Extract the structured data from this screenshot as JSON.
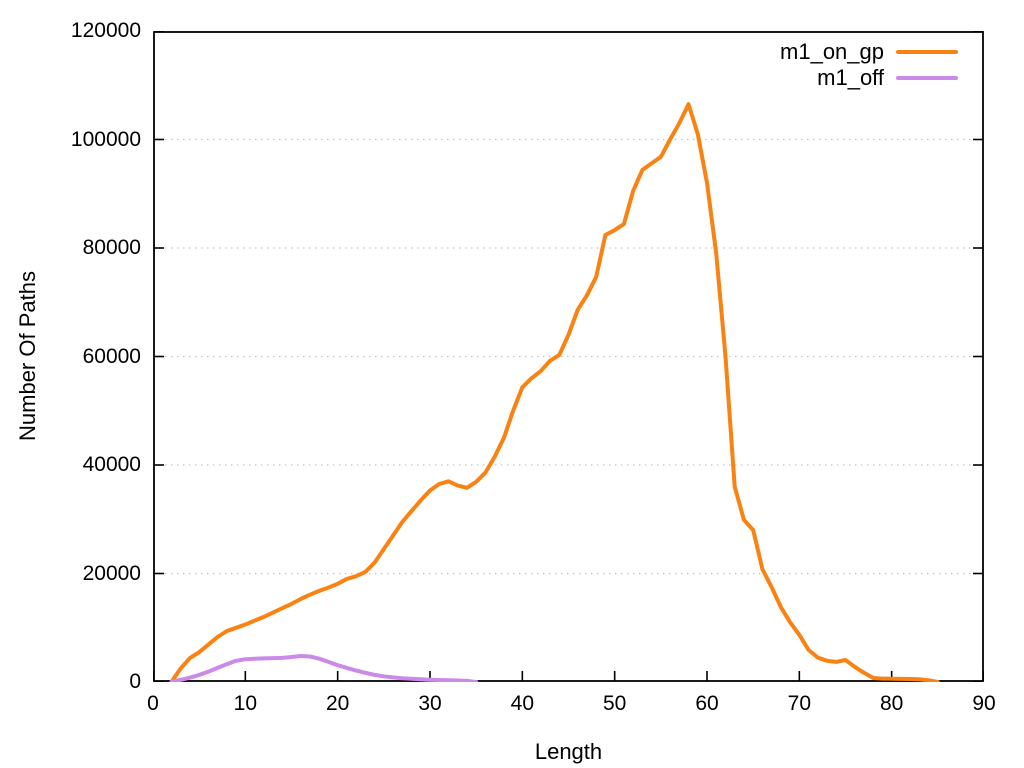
{
  "chart_data": {
    "type": "line",
    "title": "",
    "xlabel": "Length",
    "ylabel": "Number Of Paths",
    "xlim": [
      0,
      90
    ],
    "ylim": [
      0,
      120000
    ],
    "xticks": [
      0,
      10,
      20,
      30,
      40,
      50,
      60,
      70,
      80,
      90
    ],
    "yticks": [
      0,
      20000,
      40000,
      60000,
      80000,
      100000,
      120000
    ],
    "xtick_labels": [
      "0",
      "10",
      "20",
      "30",
      "40",
      "50",
      "60",
      "70",
      "80",
      "90"
    ],
    "ytick_labels": [
      "0",
      "20000",
      "40000",
      "60000",
      "80000",
      "100000",
      "120000"
    ],
    "grid": "horizontal-dotted",
    "grid_color": "#c4c4c4",
    "border_color": "#000000",
    "legend_position": "top-right-inside",
    "series": [
      {
        "name": "m1_on_gp",
        "color": "#f98212",
        "x": [
          2,
          3,
          4,
          5,
          6,
          7,
          8,
          9,
          10,
          11,
          12,
          13,
          14,
          15,
          16,
          17,
          18,
          19,
          20,
          21,
          22,
          23,
          24,
          25,
          26,
          27,
          28,
          29,
          30,
          31,
          32,
          33,
          34,
          35,
          36,
          37,
          38,
          39,
          40,
          41,
          42,
          43,
          44,
          45,
          46,
          47,
          48,
          49,
          50,
          51,
          52,
          53,
          54,
          55,
          56,
          57,
          58,
          59,
          60,
          61,
          62,
          63,
          64,
          65,
          66,
          67,
          68,
          69,
          70,
          71,
          72,
          73,
          74,
          75,
          76,
          77,
          78,
          79,
          80,
          81,
          82,
          83,
          84,
          85
        ],
        "y": [
          0,
          2500,
          4400,
          5500,
          6900,
          8300,
          9400,
          10000,
          10600,
          11300,
          12000,
          12800,
          13600,
          14400,
          15300,
          16100,
          16800,
          17400,
          18100,
          19000,
          19500,
          20300,
          22000,
          24500,
          27000,
          29500,
          31500,
          33500,
          35300,
          36500,
          37000,
          36200,
          35800,
          36900,
          38600,
          41500,
          45000,
          50000,
          54300,
          56000,
          57300,
          59200,
          60300,
          64000,
          68600,
          71300,
          74700,
          82400,
          83300,
          84400,
          90500,
          94400,
          95600,
          96800,
          100000,
          103000,
          106500,
          101000,
          92000,
          79000,
          60000,
          36000,
          29900,
          28000,
          20800,
          17500,
          13800,
          11000,
          8700,
          5900,
          4500,
          3900,
          3700,
          4050,
          2800,
          1700,
          740,
          620,
          600,
          580,
          560,
          520,
          300,
          0
        ]
      },
      {
        "name": "m1_off",
        "color": "#cb8ae9",
        "x": [
          2,
          3,
          4,
          5,
          6,
          7,
          8,
          9,
          10,
          11,
          12,
          13,
          14,
          15,
          16,
          17,
          18,
          19,
          20,
          21,
          22,
          23,
          24,
          25,
          26,
          27,
          28,
          29,
          30,
          31,
          32,
          33,
          34,
          35
        ],
        "y": [
          0,
          400,
          800,
          1300,
          1900,
          2600,
          3300,
          3900,
          4200,
          4300,
          4350,
          4400,
          4450,
          4600,
          4800,
          4700,
          4300,
          3700,
          3100,
          2600,
          2100,
          1700,
          1300,
          1050,
          850,
          700,
          600,
          520,
          430,
          370,
          320,
          270,
          200,
          0
        ]
      }
    ]
  }
}
